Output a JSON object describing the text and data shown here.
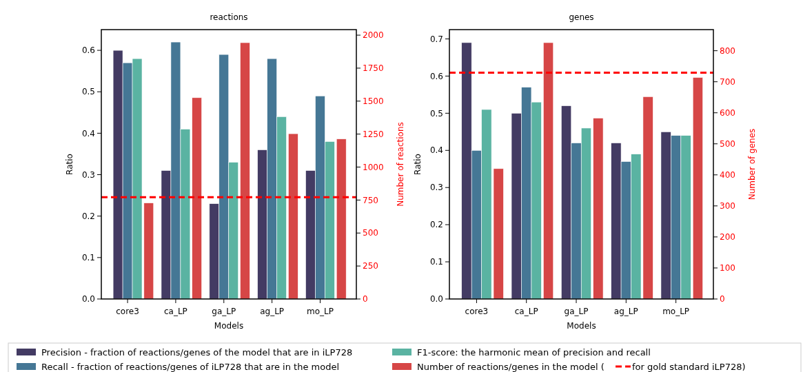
{
  "chart_data": [
    {
      "type": "bar",
      "title": "reactions",
      "xlabel": "Models",
      "ylabel": "Ratio",
      "y2label": "Number of reactions",
      "categories": [
        "core3",
        "ca_LP",
        "ga_LP",
        "ag_LP",
        "mo_LP"
      ],
      "ylim": [
        0,
        0.65
      ],
      "yticks": [
        {
          "value": 0,
          "label": "0.0"
        },
        0.1,
        0.2,
        0.3,
        0.4,
        0.5,
        0.6
      ],
      "y2lim": [
        0,
        2042
      ],
      "y2ticks": [
        0,
        250,
        500,
        750,
        1000,
        1250,
        1500,
        1750,
        2000
      ],
      "series": [
        {
          "name": "Precision - fraction of reactions/genes of the model that are in iLP728",
          "color": "#433b63",
          "values": [
            0.6,
            0.31,
            0.23,
            0.36,
            0.31
          ]
        },
        {
          "name": "Recall - fraction of reactions/genes of iLP728 that are in the model",
          "color": "#457795",
          "values": [
            0.57,
            0.62,
            0.59,
            0.58,
            0.49
          ]
        },
        {
          "name": "F1-score: the harmonic mean of precision and recall",
          "color": "#5ab3a2",
          "values": [
            0.58,
            0.41,
            0.33,
            0.44,
            0.38
          ]
        },
        {
          "name": "Number of reactions/genes in the model (",
          "color": "#d64646",
          "axis": "y2",
          "values": [
            728,
            1526,
            1943,
            1253,
            1213
          ]
        }
      ],
      "ref_lines": [
        {
          "axis": "y2",
          "value": 772,
          "label": "for gold standard iLP728)",
          "color": "#ff0000",
          "line_style": "dashed"
        }
      ],
      "legend": "bottom"
    },
    {
      "type": "bar",
      "title": "genes",
      "xlabel": "Models",
      "ylabel": "Ratio",
      "y2label": "Number of genes",
      "categories": [
        "core3",
        "ca_LP",
        "ga_LP",
        "ag_LP",
        "mo_LP"
      ],
      "ylim": [
        0,
        0.725
      ],
      "yticks": [
        {
          "value": 0,
          "label": "0.0"
        },
        0.1,
        0.2,
        0.3,
        0.4,
        0.5,
        0.6,
        0.7
      ],
      "y2lim": [
        0,
        868
      ],
      "y2ticks": [
        0,
        100,
        200,
        300,
        400,
        500,
        600,
        700,
        800
      ],
      "series": [
        {
          "color": "#433b63",
          "values": [
            0.69,
            0.5,
            0.52,
            0.42,
            0.45
          ]
        },
        {
          "color": "#457795",
          "values": [
            0.4,
            0.57,
            0.42,
            0.37,
            0.44
          ]
        },
        {
          "color": "#5ab3a2",
          "values": [
            0.51,
            0.53,
            0.46,
            0.39,
            0.44
          ]
        },
        {
          "color": "#d64646",
          "axis": "y2",
          "values": [
            420,
            826,
            583,
            652,
            714
          ]
        }
      ],
      "ref_lines": [
        {
          "axis": "y2",
          "value": 729,
          "color": "#ff0000",
          "line_style": "dashed"
        }
      ],
      "legend": false
    }
  ]
}
